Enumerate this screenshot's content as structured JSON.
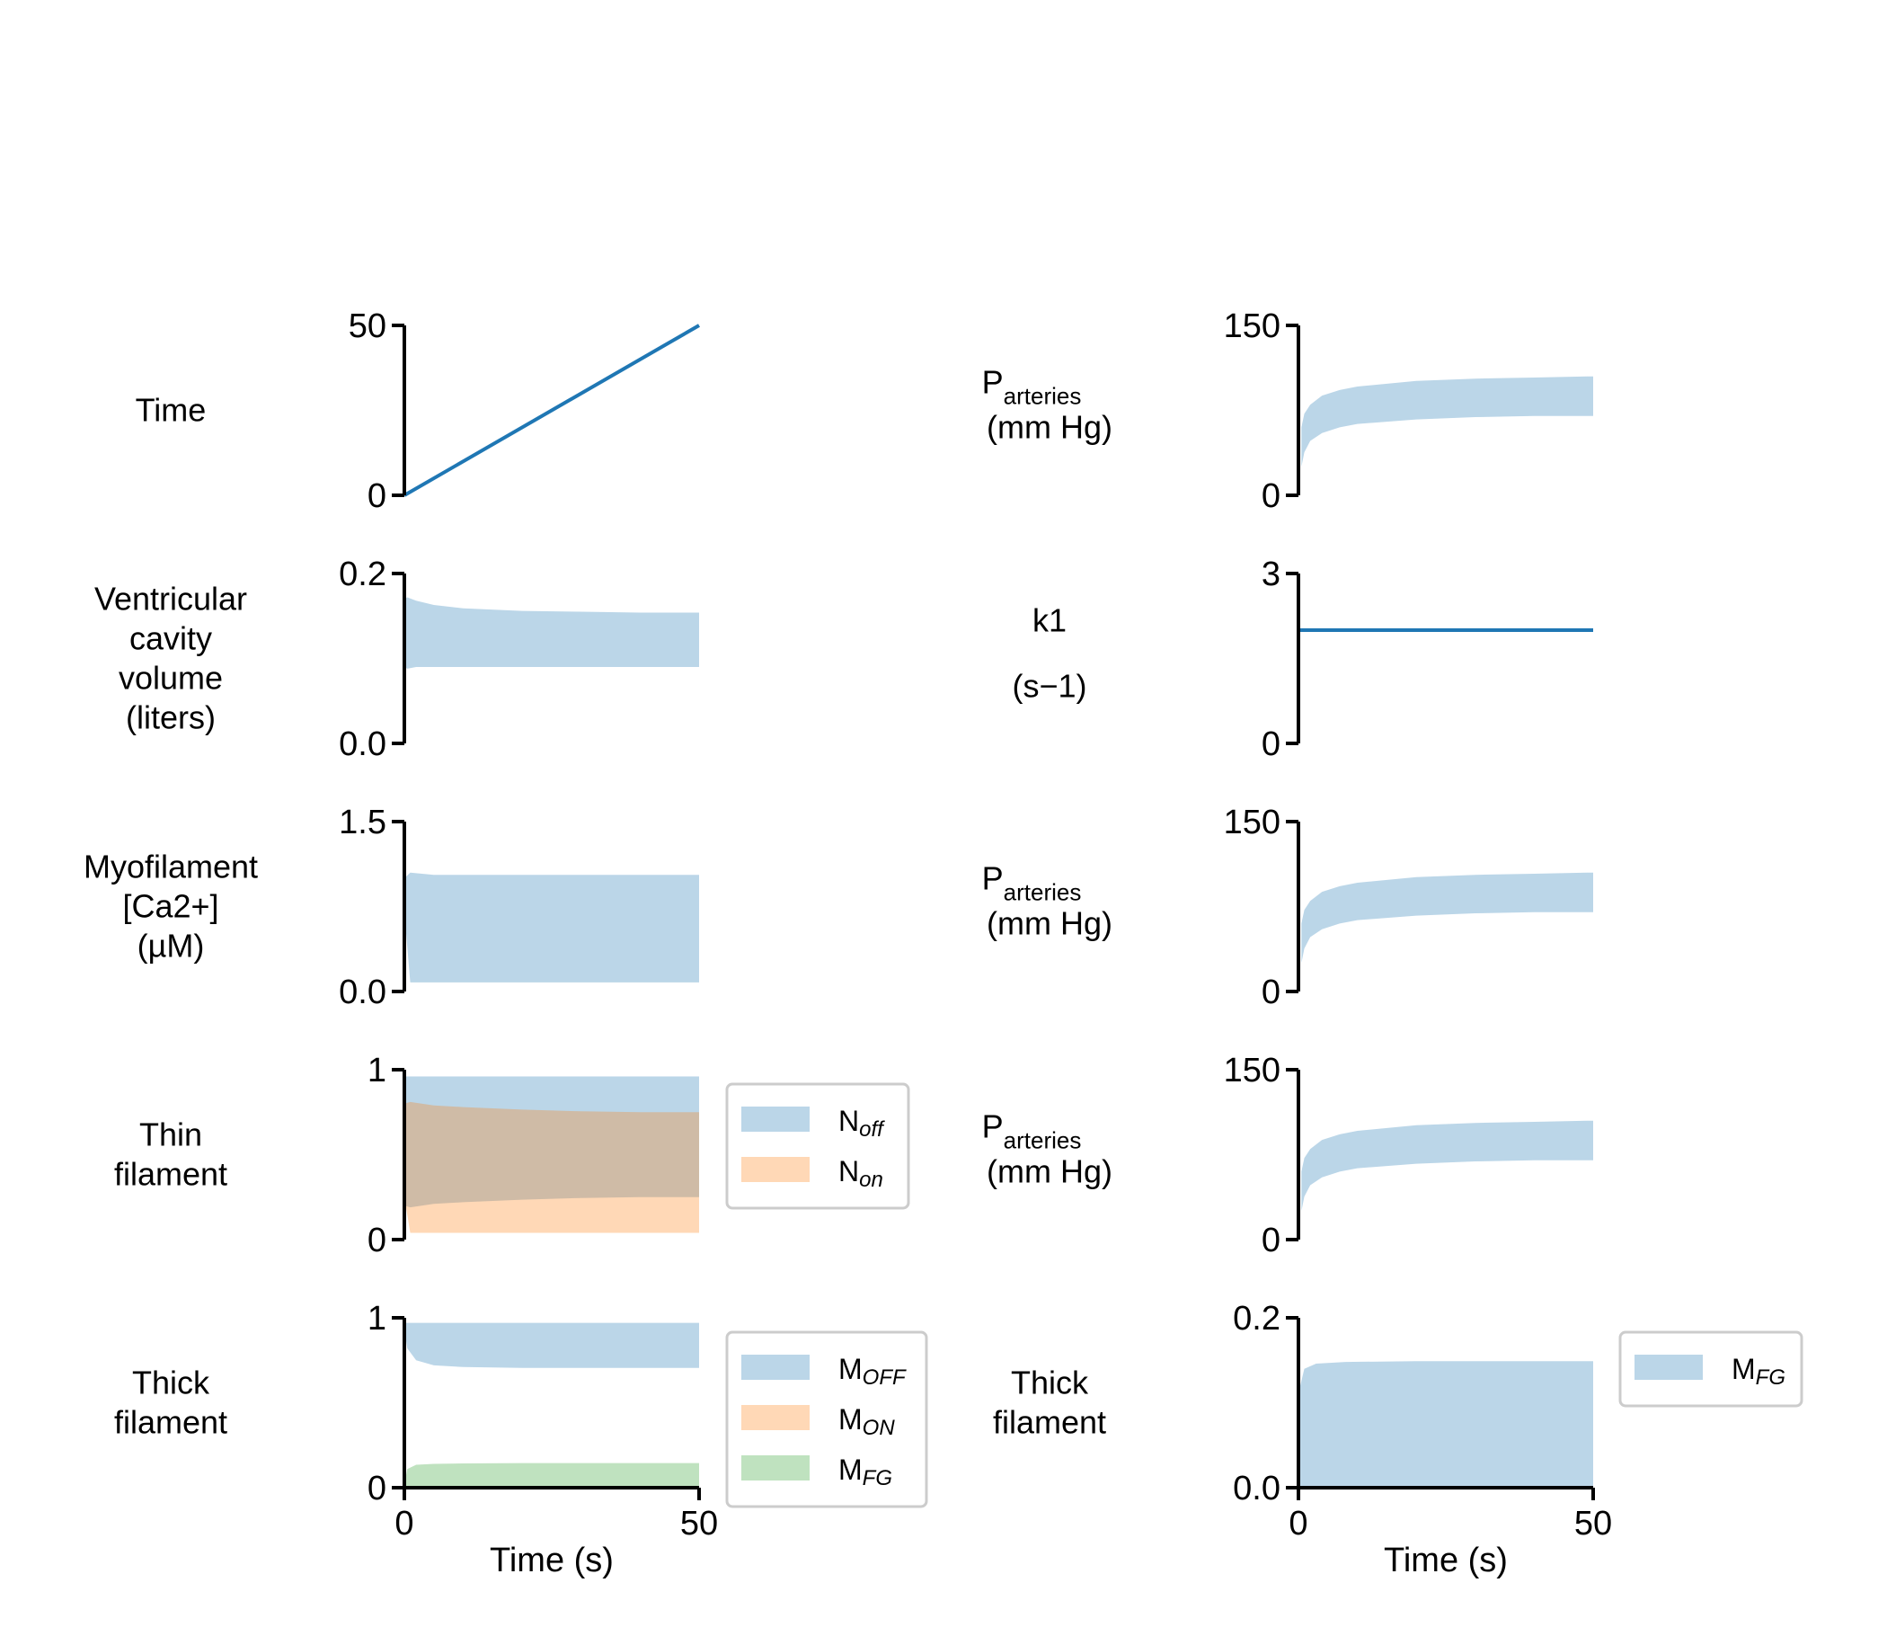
{
  "chart_data": [
    {
      "id": "time",
      "type": "line",
      "ylabel": "Time",
      "ylim": [
        0,
        50
      ],
      "yticks": [
        "0",
        "50"
      ],
      "series": [
        {
          "x": [
            0,
            50
          ],
          "y": [
            0,
            50
          ],
          "color": "#1f77b4"
        }
      ]
    },
    {
      "id": "volume",
      "type": "area",
      "ylabel": [
        "Ventricular",
        "cavity",
        "volume",
        "(liters)"
      ],
      "ylim": [
        0,
        0.2
      ],
      "yticks": [
        "0.0",
        "0.2"
      ],
      "series": [
        {
          "x": [
            0,
            0.5,
            2,
            5,
            10,
            20,
            30,
            40,
            50
          ],
          "upper": [
            0.17,
            0.172,
            0.168,
            0.163,
            0.159,
            0.156,
            0.155,
            0.154,
            0.154
          ],
          "lower": [
            0.09,
            0.088,
            0.09,
            0.09,
            0.09,
            0.09,
            0.09,
            0.09,
            0.09
          ],
          "color": "#1f77b4"
        }
      ]
    },
    {
      "id": "calcium",
      "type": "area",
      "ylabel": [
        "Myofilament",
        "[Ca2+]",
        "(µM)"
      ],
      "ylim": [
        0,
        1.5
      ],
      "yticks": [
        "0.0",
        "1.5"
      ],
      "series": [
        {
          "x": [
            0,
            1,
            5,
            10,
            20,
            30,
            40,
            50
          ],
          "upper": [
            1.0,
            1.05,
            1.03,
            1.03,
            1.03,
            1.03,
            1.03,
            1.03
          ],
          "lower": [
            0.7,
            0.08,
            0.08,
            0.08,
            0.08,
            0.08,
            0.08,
            0.08
          ],
          "color": "#1f77b4"
        }
      ]
    },
    {
      "id": "thin",
      "type": "area",
      "ylabel": [
        "Thin",
        "filament"
      ],
      "ylim": [
        0,
        1
      ],
      "yticks": [
        "0",
        "1"
      ],
      "legend": [
        {
          "main": "N",
          "sub": "off"
        },
        {
          "main": "N",
          "sub": "on"
        }
      ],
      "series": [
        {
          "name": "Noff",
          "x": [
            0,
            1,
            5,
            10,
            20,
            30,
            40,
            50
          ],
          "upper": [
            0.96,
            0.96,
            0.96,
            0.96,
            0.96,
            0.96,
            0.96,
            0.96
          ],
          "lower": [
            0.2,
            0.19,
            0.21,
            0.22,
            0.235,
            0.245,
            0.25,
            0.25
          ],
          "color": "#1f77b4"
        },
        {
          "name": "Non",
          "x": [
            0,
            1,
            5,
            10,
            20,
            30,
            40,
            50
          ],
          "upper": [
            0.8,
            0.81,
            0.79,
            0.78,
            0.765,
            0.755,
            0.75,
            0.75
          ],
          "lower": [
            0.25,
            0.04,
            0.04,
            0.04,
            0.04,
            0.04,
            0.04,
            0.04
          ],
          "color": "#ff7f0e"
        }
      ]
    },
    {
      "id": "thick",
      "type": "area",
      "ylabel": [
        "Thick",
        "filament"
      ],
      "ylim": [
        0,
        1
      ],
      "yticks": [
        "0",
        "1"
      ],
      "legend": [
        {
          "main": "M",
          "sub": "OFF"
        },
        {
          "main": "M",
          "sub": "ON"
        },
        {
          "main": "M",
          "sub": "FG"
        }
      ],
      "series": [
        {
          "name": "MOFF",
          "x": [
            0,
            0.5,
            2,
            5,
            10,
            20,
            30,
            40,
            49.5,
            50
          ],
          "upper": [
            0.97,
            0.97,
            0.97,
            0.97,
            0.97,
            0.97,
            0.97,
            0.97,
            0.97,
            0.97
          ],
          "lower": [
            0.93,
            0.82,
            0.75,
            0.72,
            0.71,
            0.705,
            0.705,
            0.705,
            0.705,
            0.705
          ],
          "color": "#1f77b4"
        },
        {
          "name": "MON",
          "x": [
            0,
            1,
            5,
            50
          ],
          "upper": [
            0.01,
            0.01,
            0.01,
            0.01
          ],
          "lower": [
            0,
            0,
            0,
            0
          ],
          "color": "#ff7f0e"
        },
        {
          "name": "MFG",
          "x": [
            0,
            0.5,
            2,
            5,
            10,
            20,
            30,
            40,
            50
          ],
          "upper": [
            0.02,
            0.11,
            0.135,
            0.14,
            0.143,
            0.145,
            0.145,
            0.145,
            0.145
          ],
          "lower": [
            0,
            0,
            0,
            0,
            0,
            0,
            0,
            0,
            0
          ],
          "color": "#2ca02c"
        }
      ],
      "xlabel": "Time (s)",
      "xticks": [
        "0",
        "50"
      ]
    },
    {
      "id": "p1",
      "type": "area",
      "ylabel": [
        "P",
        "arteries",
        "(mm Hg)"
      ],
      "ylim": [
        0,
        150
      ],
      "yticks": [
        "0",
        "150"
      ],
      "series": [
        {
          "x": [
            0.5,
            1,
            2,
            4,
            7,
            10,
            20,
            30,
            40,
            49,
            50
          ],
          "upper": [
            60,
            72,
            80,
            88,
            93,
            96,
            101,
            103,
            104,
            105,
            105
          ],
          "lower": [
            25,
            38,
            48,
            55,
            60,
            63,
            67,
            69,
            70,
            70,
            70
          ],
          "color": "#1f77b4"
        }
      ]
    },
    {
      "id": "k1",
      "type": "line",
      "ylabel": [
        "k1",
        "(s−1)"
      ],
      "ylim": [
        0,
        3
      ],
      "yticks": [
        "0",
        "3"
      ],
      "series": [
        {
          "x": [
            0,
            50
          ],
          "y": [
            2,
            2
          ],
          "color": "#1f77b4"
        }
      ]
    },
    {
      "id": "p2",
      "type": "area",
      "ylabel": [
        "P",
        "arteries",
        "(mm Hg)"
      ],
      "ylim": [
        0,
        150
      ],
      "yticks": [
        "0",
        "150"
      ],
      "series": [
        {
          "x": [
            0.5,
            1,
            2,
            4,
            7,
            10,
            20,
            30,
            40,
            49,
            50
          ],
          "upper": [
            60,
            72,
            80,
            88,
            93,
            96,
            101,
            103,
            104,
            105,
            105
          ],
          "lower": [
            25,
            38,
            48,
            55,
            60,
            63,
            67,
            69,
            70,
            70,
            70
          ],
          "color": "#1f77b4"
        }
      ]
    },
    {
      "id": "p3",
      "type": "area",
      "ylabel": [
        "P",
        "arteries",
        "(mm Hg)"
      ],
      "ylim": [
        0,
        150
      ],
      "yticks": [
        "0",
        "150"
      ],
      "series": [
        {
          "x": [
            0.5,
            1,
            2,
            4,
            7,
            10,
            20,
            30,
            40,
            49,
            50
          ],
          "upper": [
            60,
            72,
            80,
            88,
            93,
            96,
            101,
            103,
            104,
            105,
            105
          ],
          "lower": [
            25,
            38,
            48,
            55,
            60,
            63,
            67,
            69,
            70,
            70,
            70
          ],
          "color": "#1f77b4"
        }
      ]
    },
    {
      "id": "thick2",
      "type": "area",
      "ylabel": [
        "Thick",
        "filament"
      ],
      "ylim": [
        0,
        0.2
      ],
      "yticks": [
        "0.0",
        "0.2"
      ],
      "legend": [
        {
          "main": "M",
          "sub": "FG"
        }
      ],
      "series": [
        {
          "name": "MFG",
          "x": [
            0,
            0.3,
            1,
            3,
            8,
            20,
            50
          ],
          "upper": [
            0.02,
            0.12,
            0.14,
            0.146,
            0.148,
            0.149,
            0.149
          ],
          "lower": [
            0,
            0,
            0,
            0,
            0,
            0,
            0
          ],
          "color": "#1f77b4"
        }
      ],
      "xlabel": "Time (s)",
      "xticks": [
        "0",
        "50"
      ]
    }
  ]
}
